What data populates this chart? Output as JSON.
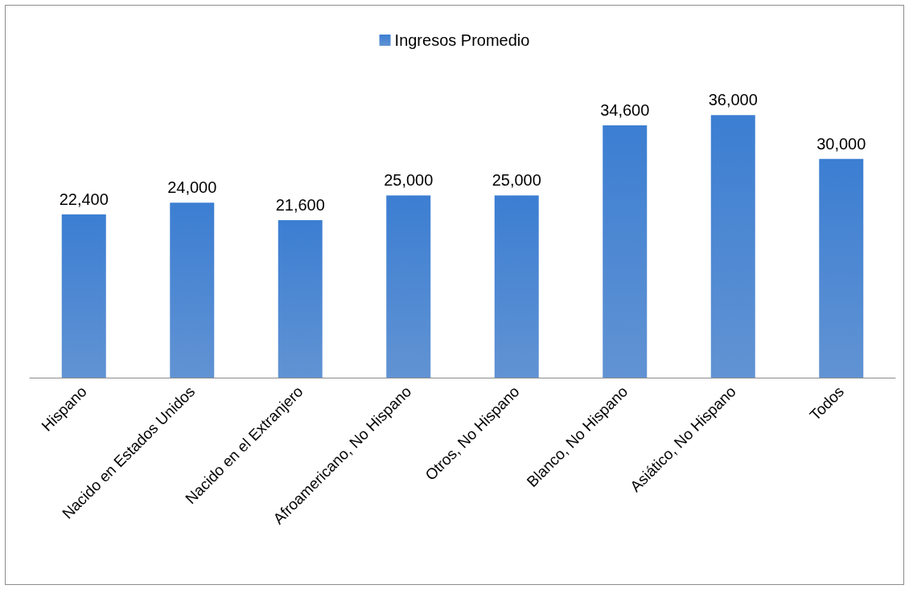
{
  "chart_data": {
    "type": "bar",
    "categories": [
      "Hispano",
      "Nacido en Estados Unidos",
      "Nacido en el Extranjero",
      "Afroamericano, No Hispano",
      "Otros, No Hispano",
      "Blanco, No Hispano",
      "Asiático, No Hispano",
      "Todos"
    ],
    "series": [
      {
        "name": "Ingresos Promedio",
        "color": "#3a78c8",
        "values": [
          22400,
          24000,
          21600,
          25000,
          25000,
          34600,
          36000,
          30000
        ],
        "value_labels": [
          "22,400",
          "24,000",
          "21,600",
          "25,000",
          "25,000",
          "34,600",
          "36,000",
          "30,000"
        ]
      }
    ],
    "legend": "top"
  }
}
